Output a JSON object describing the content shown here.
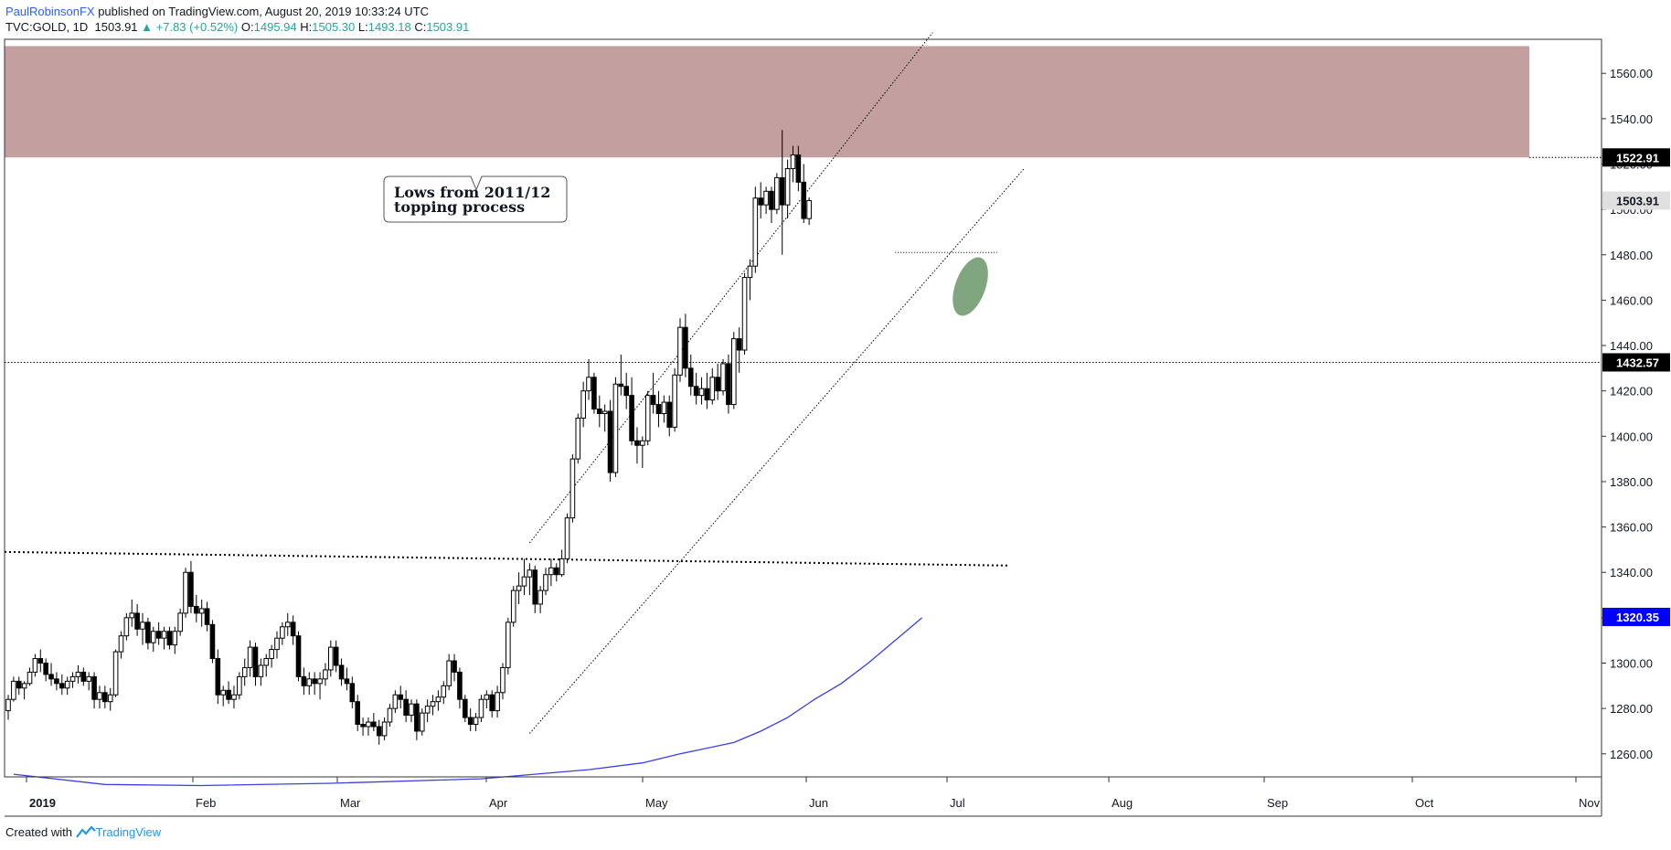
{
  "header": {
    "author": "PaulRobinsonFX",
    "published_text": "published on TradingView.com, August 20, 2019 10:33:24 UTC",
    "symbol": "TVC:GOLD, 1D",
    "last": "1503.91",
    "change": "▲ +7.83 (+0.52%)",
    "o_label": "O:",
    "o_value": "1495.94",
    "h_label": "H:",
    "h_value": "1505.30",
    "l_label": "L:",
    "l_value": "1493.18",
    "c_label": "C:",
    "c_value": "1503.91"
  },
  "footer": {
    "created_with": "Created with",
    "brand": "TradingView"
  },
  "colors": {
    "zone": "#c49fa0",
    "ellipse": "#7fa67f",
    "ma_line": "#3b3fe0",
    "ma_label_bg": "#0000ff",
    "price_label_bg": "#000000",
    "candle_up": "#ffffff",
    "candle_down": "#000000"
  },
  "chart_data": {
    "type": "candlestick",
    "ylim": [
      1245,
      1575
    ],
    "x_ticks": [
      "2019",
      "Feb",
      "Mar",
      "Apr",
      "May",
      "Jun",
      "Jul",
      "Aug",
      "Sep",
      "Oct",
      "Nov"
    ],
    "y_ticks": [
      "1260.00",
      "1280.00",
      "1300.00",
      "1320.00",
      "1340.00",
      "1360.00",
      "1380.00",
      "1400.00",
      "1420.00",
      "1440.00",
      "1460.00",
      "1480.00",
      "1500.00",
      "1520.00",
      "1540.00",
      "1560.00"
    ],
    "ohlc": [
      [
        1279,
        1286,
        1275,
        1284
      ],
      [
        1284,
        1294,
        1283,
        1292
      ],
      [
        1292,
        1294,
        1286,
        1289
      ],
      [
        1289,
        1292,
        1284,
        1291
      ],
      [
        1291,
        1298,
        1290,
        1296
      ],
      [
        1296,
        1304,
        1294,
        1302
      ],
      [
        1302,
        1306,
        1296,
        1300
      ],
      [
        1300,
        1302,
        1292,
        1295
      ],
      [
        1295,
        1300,
        1290,
        1293
      ],
      [
        1293,
        1296,
        1288,
        1291
      ],
      [
        1291,
        1295,
        1286,
        1289
      ],
      [
        1289,
        1294,
        1286,
        1292
      ],
      [
        1292,
        1296,
        1289,
        1294
      ],
      [
        1294,
        1299,
        1291,
        1296
      ],
      [
        1296,
        1298,
        1290,
        1292
      ],
      [
        1292,
        1296,
        1288,
        1294
      ],
      [
        1294,
        1296,
        1280,
        1284
      ],
      [
        1284,
        1290,
        1280,
        1287
      ],
      [
        1287,
        1290,
        1280,
        1283
      ],
      [
        1283,
        1289,
        1279,
        1286
      ],
      [
        1286,
        1306,
        1285,
        1305
      ],
      [
        1305,
        1314,
        1302,
        1312
      ],
      [
        1312,
        1322,
        1310,
        1320
      ],
      [
        1320,
        1328,
        1316,
        1322
      ],
      [
        1322,
        1326,
        1312,
        1315
      ],
      [
        1315,
        1322,
        1308,
        1318
      ],
      [
        1318,
        1320,
        1306,
        1309
      ],
      [
        1309,
        1316,
        1305,
        1314
      ],
      [
        1314,
        1318,
        1308,
        1311
      ],
      [
        1311,
        1316,
        1306,
        1314
      ],
      [
        1314,
        1316,
        1306,
        1308
      ],
      [
        1308,
        1316,
        1304,
        1314
      ],
      [
        1314,
        1324,
        1312,
        1322
      ],
      [
        1322,
        1342,
        1320,
        1340
      ],
      [
        1340,
        1345,
        1322,
        1325
      ],
      [
        1325,
        1330,
        1318,
        1322
      ],
      [
        1322,
        1328,
        1316,
        1324
      ],
      [
        1324,
        1327,
        1314,
        1317
      ],
      [
        1317,
        1319,
        1300,
        1302
      ],
      [
        1302,
        1306,
        1282,
        1286
      ],
      [
        1286,
        1290,
        1281,
        1288
      ],
      [
        1288,
        1292,
        1282,
        1284
      ],
      [
        1284,
        1290,
        1280,
        1286
      ],
      [
        1286,
        1296,
        1284,
        1294
      ],
      [
        1294,
        1302,
        1290,
        1298
      ],
      [
        1298,
        1310,
        1294,
        1307
      ],
      [
        1307,
        1309,
        1290,
        1294
      ],
      [
        1294,
        1302,
        1290,
        1299
      ],
      [
        1299,
        1304,
        1294,
        1302
      ],
      [
        1302,
        1308,
        1298,
        1306
      ],
      [
        1306,
        1314,
        1302,
        1311
      ],
      [
        1311,
        1318,
        1308,
        1316
      ],
      [
        1316,
        1322,
        1312,
        1318
      ],
      [
        1318,
        1321,
        1308,
        1312
      ],
      [
        1312,
        1314,
        1292,
        1294
      ],
      [
        1294,
        1298,
        1286,
        1290
      ],
      [
        1290,
        1296,
        1286,
        1293
      ],
      [
        1293,
        1296,
        1286,
        1291
      ],
      [
        1291,
        1296,
        1284,
        1293
      ],
      [
        1293,
        1300,
        1290,
        1297
      ],
      [
        1297,
        1310,
        1294,
        1307
      ],
      [
        1307,
        1310,
        1296,
        1299
      ],
      [
        1299,
        1302,
        1290,
        1293
      ],
      [
        1293,
        1298,
        1288,
        1291
      ],
      [
        1291,
        1294,
        1280,
        1283
      ],
      [
        1283,
        1286,
        1270,
        1273
      ],
      [
        1273,
        1276,
        1268,
        1272
      ],
      [
        1272,
        1276,
        1268,
        1274
      ],
      [
        1274,
        1278,
        1270,
        1272
      ],
      [
        1272,
        1275,
        1264,
        1268
      ],
      [
        1268,
        1276,
        1266,
        1274
      ],
      [
        1274,
        1282,
        1272,
        1280
      ],
      [
        1280,
        1288,
        1278,
        1286
      ],
      [
        1286,
        1290,
        1280,
        1284
      ],
      [
        1284,
        1288,
        1274,
        1277
      ],
      [
        1277,
        1284,
        1274,
        1282
      ],
      [
        1282,
        1284,
        1266,
        1270
      ],
      [
        1270,
        1280,
        1268,
        1278
      ],
      [
        1278,
        1284,
        1274,
        1281
      ],
      [
        1281,
        1286,
        1277,
        1283
      ],
      [
        1283,
        1288,
        1279,
        1285
      ],
      [
        1285,
        1292,
        1282,
        1290
      ],
      [
        1290,
        1304,
        1288,
        1301
      ],
      [
        1301,
        1304,
        1292,
        1296
      ],
      [
        1296,
        1298,
        1280,
        1284
      ],
      [
        1284,
        1286,
        1274,
        1276
      ],
      [
        1276,
        1280,
        1270,
        1273
      ],
      [
        1273,
        1278,
        1270,
        1276
      ],
      [
        1276,
        1286,
        1274,
        1284
      ],
      [
        1284,
        1288,
        1280,
        1286
      ],
      [
        1286,
        1288,
        1276,
        1279
      ],
      [
        1279,
        1290,
        1276,
        1287
      ],
      [
        1287,
        1300,
        1284,
        1298
      ],
      [
        1298,
        1320,
        1295,
        1318
      ],
      [
        1318,
        1334,
        1316,
        1332
      ],
      [
        1332,
        1340,
        1326,
        1334
      ],
      [
        1334,
        1346,
        1330,
        1338
      ],
      [
        1338,
        1344,
        1330,
        1341
      ],
      [
        1341,
        1343,
        1322,
        1326
      ],
      [
        1326,
        1334,
        1322,
        1332
      ],
      [
        1332,
        1342,
        1330,
        1339
      ],
      [
        1339,
        1346,
        1334,
        1342
      ],
      [
        1342,
        1344,
        1336,
        1339
      ],
      [
        1339,
        1350,
        1338,
        1346
      ],
      [
        1346,
        1366,
        1344,
        1364
      ],
      [
        1364,
        1392,
        1362,
        1390
      ],
      [
        1390,
        1410,
        1388,
        1408
      ],
      [
        1408,
        1424,
        1404,
        1420
      ],
      [
        1420,
        1434,
        1416,
        1426
      ],
      [
        1426,
        1428,
        1410,
        1412
      ],
      [
        1412,
        1418,
        1404,
        1410
      ],
      [
        1410,
        1414,
        1402,
        1411
      ],
      [
        1411,
        1416,
        1380,
        1384
      ],
      [
        1384,
        1426,
        1382,
        1423
      ],
      [
        1423,
        1436,
        1418,
        1422
      ],
      [
        1422,
        1428,
        1412,
        1418
      ],
      [
        1418,
        1426,
        1396,
        1398
      ],
      [
        1398,
        1404,
        1388,
        1396
      ],
      [
        1396,
        1400,
        1386,
        1398
      ],
      [
        1398,
        1420,
        1396,
        1418
      ],
      [
        1418,
        1428,
        1410,
        1414
      ],
      [
        1414,
        1420,
        1404,
        1410
      ],
      [
        1410,
        1418,
        1406,
        1415
      ],
      [
        1415,
        1418,
        1400,
        1404
      ],
      [
        1404,
        1430,
        1402,
        1427
      ],
      [
        1427,
        1452,
        1424,
        1448
      ],
      [
        1448,
        1454,
        1426,
        1430
      ],
      [
        1430,
        1436,
        1418,
        1422
      ],
      [
        1422,
        1428,
        1414,
        1418
      ],
      [
        1418,
        1426,
        1414,
        1421
      ],
      [
        1421,
        1428,
        1412,
        1416
      ],
      [
        1416,
        1430,
        1414,
        1426
      ],
      [
        1426,
        1432,
        1416,
        1420
      ],
      [
        1420,
        1434,
        1418,
        1432
      ],
      [
        1432,
        1436,
        1410,
        1414
      ],
      [
        1414,
        1446,
        1412,
        1443
      ],
      [
        1443,
        1448,
        1428,
        1438
      ],
      [
        1438,
        1472,
        1436,
        1470
      ],
      [
        1470,
        1478,
        1460,
        1475
      ],
      [
        1475,
        1510,
        1472,
        1505
      ],
      [
        1505,
        1512,
        1496,
        1502
      ],
      [
        1502,
        1510,
        1498,
        1508
      ],
      [
        1508,
        1510,
        1494,
        1500
      ],
      [
        1500,
        1516,
        1498,
        1514
      ],
      [
        1514,
        1535,
        1480,
        1502
      ],
      [
        1502,
        1522,
        1496,
        1518
      ],
      [
        1518,
        1528,
        1512,
        1524
      ],
      [
        1524,
        1528,
        1508,
        1512
      ],
      [
        1512,
        1520,
        1494,
        1496
      ],
      [
        1495.94,
        1505.3,
        1493.18,
        1503.91
      ]
    ],
    "ma_points": [
      [
        1,
        1251
      ],
      [
        18,
        1246.5
      ],
      [
        36,
        1246
      ],
      [
        60,
        1247
      ],
      [
        88,
        1249
      ],
      [
        108,
        1253
      ],
      [
        118,
        1256
      ],
      [
        125,
        1260
      ],
      [
        135,
        1265
      ],
      [
        140,
        1270
      ],
      [
        145,
        1276
      ],
      [
        150,
        1284
      ],
      [
        155,
        1291
      ],
      [
        160,
        1300
      ],
      [
        165,
        1310
      ],
      [
        170,
        1320
      ]
    ],
    "zone": {
      "top": 1572,
      "bottom": 1522.91
    },
    "horizontal_levels": [
      {
        "price": 1432.57,
        "label": "1432.57"
      },
      {
        "price": 1522.91,
        "label": "1522.91"
      }
    ],
    "last_price_label": "1503.91",
    "ma_label": "1320.35",
    "trend_lines": [
      {
        "from": [
          97,
          1269
        ],
        "to": [
          189,
          1518
        ]
      },
      {
        "from": [
          97,
          1353
        ],
        "to": [
          172,
          1578
        ]
      }
    ],
    "resistance_line": {
      "from": [
        0,
        1349
      ],
      "to": [
        186,
        1343
      ]
    },
    "support_marker": {
      "from": [
        165,
        1481
      ],
      "to": [
        184,
        1481
      ]
    },
    "ellipse": {
      "center": [
        179,
        1466
      ],
      "rx": 2.8,
      "ry": 13.5
    },
    "annotation": {
      "text": [
        "Lows from 2011/12",
        "topping process"
      ],
      "pointer": [
        63,
        1522
      ]
    }
  }
}
